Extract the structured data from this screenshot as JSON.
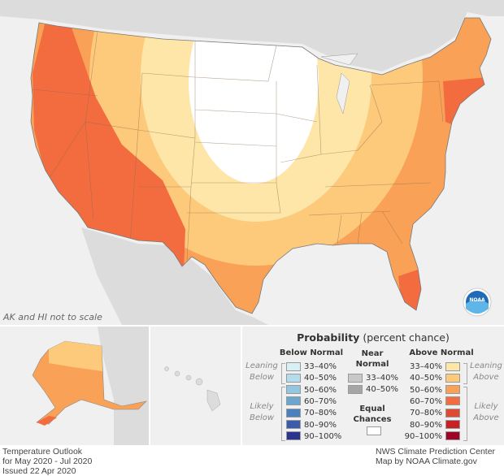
{
  "map_note": "AK and HI not to scale",
  "legend": {
    "title_bold": "Probability",
    "title_rest": "(percent chance)",
    "below": {
      "heading": "Below Normal",
      "leaning_label": [
        "Leaning",
        "Below"
      ],
      "likely_label": [
        "Likely",
        "Below"
      ],
      "items": [
        {
          "label": "33–40%",
          "color": "#d9eff6"
        },
        {
          "label": "40–50%",
          "color": "#b4dcec"
        },
        {
          "label": "50–60%",
          "color": "#93c6e0"
        },
        {
          "label": "60–70%",
          "color": "#6aa6d0"
        },
        {
          "label": "70–80%",
          "color": "#4a80c0"
        },
        {
          "label": "80–90%",
          "color": "#3a5cab"
        },
        {
          "label": "90–100%",
          "color": "#2b3590"
        }
      ]
    },
    "near": {
      "heading": [
        "Near",
        "Normal"
      ],
      "items": [
        {
          "label": "33–40%",
          "color": "#c8c8c8"
        },
        {
          "label": "40–50%",
          "color": "#a6a6a6"
        }
      ],
      "equal_heading": [
        "Equal",
        "Chances"
      ],
      "equal_color": "#ffffff"
    },
    "above": {
      "heading": "Above Normal",
      "leaning_label": [
        "Leaning",
        "Above"
      ],
      "likely_label": [
        "Likely",
        "Above"
      ],
      "items": [
        {
          "label": "33–40%",
          "color": "#fde6a8"
        },
        {
          "label": "40–50%",
          "color": "#fdc97b"
        },
        {
          "label": "50–60%",
          "color": "#f9a257"
        },
        {
          "label": "60–70%",
          "color": "#f26c3f"
        },
        {
          "label": "70–80%",
          "color": "#e04a33"
        },
        {
          "label": "80–90%",
          "color": "#c82027"
        },
        {
          "label": "90–100%",
          "color": "#9e0427"
        }
      ]
    }
  },
  "footer": {
    "left": [
      "Temperature Outlook",
      "for May 2020 - Jul 2020",
      "Issued 22 Apr 2020"
    ],
    "right": [
      "NWS Climate Prediction Center",
      "Map by NOAA Climate.gov"
    ]
  },
  "logo_text": "NOAA"
}
